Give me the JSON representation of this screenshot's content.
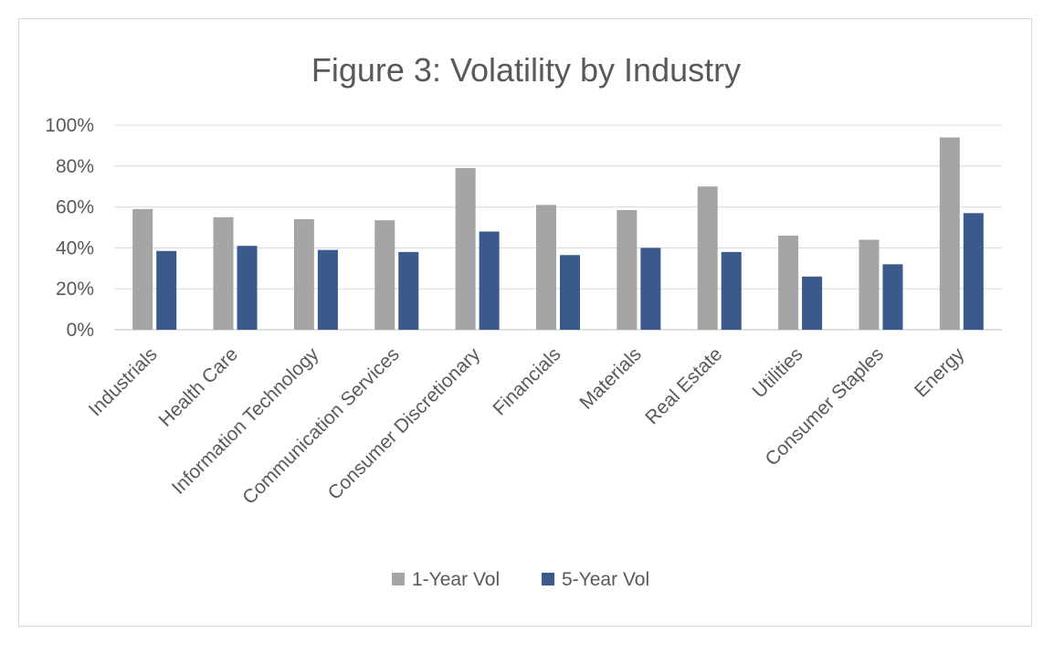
{
  "chart_data": {
    "type": "bar",
    "title": "Figure 3: Volatility by Industry",
    "xlabel": "",
    "ylabel": "",
    "ylim": [
      0,
      100
    ],
    "yticks": [
      0,
      20,
      40,
      60,
      80,
      100
    ],
    "ytick_labels": [
      "0%",
      "20%",
      "40%",
      "60%",
      "80%",
      "100%"
    ],
    "grid": true,
    "legend_position": "bottom",
    "categories": [
      "Industrials",
      "Health Care",
      "Information Technology",
      "Communication Services",
      "Consumer Discretionary",
      "Financials",
      "Materials",
      "Real Estate",
      "Utilities",
      "Consumer Staples",
      "Energy"
    ],
    "series": [
      {
        "name": "1-Year Vol",
        "color": "#a5a5a5",
        "values": [
          59,
          55,
          54,
          53.5,
          79,
          61,
          58.5,
          70,
          46,
          44,
          94
        ]
      },
      {
        "name": "5-Year Vol",
        "color": "#3a5a8c",
        "values": [
          38.5,
          41,
          39,
          38,
          48,
          36.5,
          40,
          38,
          26,
          32,
          57
        ]
      }
    ]
  }
}
